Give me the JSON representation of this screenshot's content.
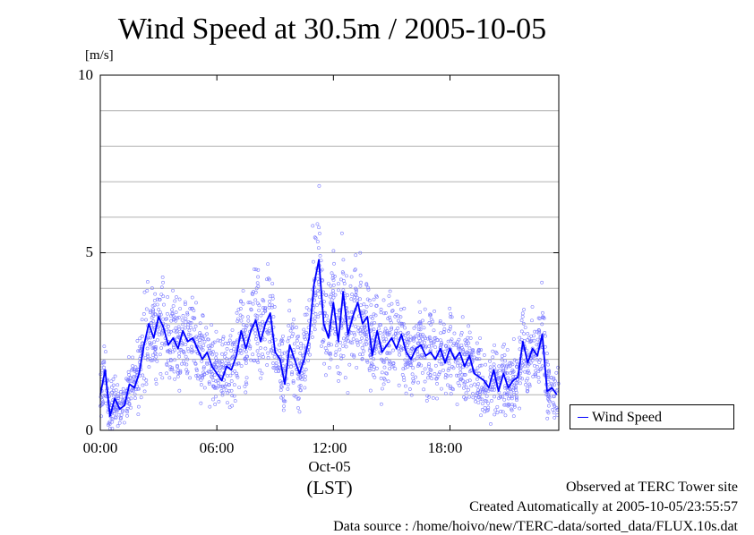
{
  "chart_data": {
    "type": "line",
    "title": "Wind Speed at 30.5m / 2005-10-05",
    "ylabel": "[m/s]",
    "xlabel": "(LST)",
    "date_label": "Oct-05",
    "ylim": [
      0,
      10
    ],
    "xlim": [
      0,
      23.6
    ],
    "y_ticks": [
      "0",
      "5",
      "10"
    ],
    "x_ticks": [
      "00:00",
      "06:00",
      "12:00",
      "18:00"
    ],
    "grid": true,
    "legend_position": "bottom-right-outside",
    "series": [
      {
        "name": "Wind Speed",
        "color": "#0000ff",
        "x": [
          0.0,
          0.25,
          0.5,
          0.75,
          1.0,
          1.25,
          1.5,
          1.75,
          2.0,
          2.25,
          2.5,
          2.75,
          3.0,
          3.25,
          3.5,
          3.75,
          4.0,
          4.25,
          4.5,
          4.75,
          5.0,
          5.25,
          5.5,
          5.75,
          6.0,
          6.25,
          6.5,
          6.75,
          7.0,
          7.25,
          7.5,
          7.75,
          8.0,
          8.25,
          8.5,
          8.75,
          9.0,
          9.25,
          9.5,
          9.75,
          10.0,
          10.25,
          10.5,
          10.75,
          11.0,
          11.25,
          11.5,
          11.75,
          12.0,
          12.25,
          12.5,
          12.75,
          13.0,
          13.25,
          13.5,
          13.75,
          14.0,
          14.25,
          14.5,
          14.75,
          15.0,
          15.25,
          15.5,
          15.75,
          16.0,
          16.25,
          16.5,
          16.75,
          17.0,
          17.25,
          17.5,
          17.75,
          18.0,
          18.25,
          18.5,
          18.75,
          19.0,
          19.25,
          19.5,
          19.75,
          20.0,
          20.25,
          20.5,
          20.75,
          21.0,
          21.25,
          21.5,
          21.75,
          22.0,
          22.25,
          22.5,
          22.75,
          23.0,
          23.25,
          23.5
        ],
        "values": [
          1.0,
          1.7,
          0.4,
          0.9,
          0.6,
          0.7,
          1.3,
          1.2,
          1.6,
          2.4,
          3.0,
          2.6,
          3.2,
          2.9,
          2.4,
          2.6,
          2.3,
          2.8,
          2.5,
          2.6,
          2.3,
          2.0,
          2.2,
          1.8,
          1.6,
          1.4,
          1.8,
          1.7,
          2.1,
          2.8,
          2.3,
          2.8,
          3.1,
          2.5,
          3.0,
          3.3,
          2.2,
          2.0,
          1.3,
          2.4,
          2.0,
          1.6,
          2.0,
          2.6,
          4.1,
          4.8,
          3.0,
          2.6,
          3.6,
          2.5,
          3.9,
          2.7,
          3.2,
          3.6,
          3.0,
          3.2,
          2.1,
          2.8,
          2.2,
          2.4,
          2.6,
          2.3,
          2.7,
          2.2,
          2.0,
          2.3,
          2.4,
          2.1,
          2.2,
          2.0,
          2.3,
          1.9,
          2.3,
          2.0,
          2.2,
          1.8,
          2.1,
          1.6,
          1.5,
          1.4,
          1.2,
          1.7,
          1.1,
          1.6,
          1.2,
          1.4,
          1.5,
          2.5,
          1.9,
          2.3,
          2.1,
          2.7,
          1.1,
          1.2,
          1.0
        ]
      }
    ]
  },
  "footer": {
    "observed": "Observed at TERC Tower site",
    "created": "Created Automatically at 2005-10-05/23:55:57",
    "source": "Data source : /home/hoivo/new/TERC-data/sorted_data/FLUX.10s.dat"
  }
}
